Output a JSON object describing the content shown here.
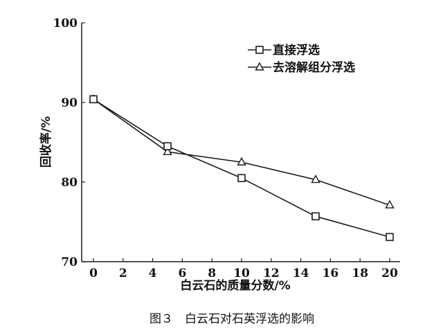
{
  "chart_data": {
    "type": "line",
    "title": "",
    "caption": "图３　白云石对石英浮选的影响",
    "xlabel": "白云石的质量分数/%",
    "ylabel": "回收率/%",
    "xlim": [
      0,
      20
    ],
    "ylim": [
      70,
      100
    ],
    "xticks": [
      0,
      2,
      4,
      6,
      8,
      10,
      12,
      14,
      16,
      18,
      20
    ],
    "yticks": [
      70,
      80,
      90,
      100
    ],
    "grid": false,
    "legend_position": "top-right",
    "series": [
      {
        "name": "直接浮选",
        "marker": "square",
        "x": [
          0,
          5,
          10,
          15,
          20
        ],
        "y": [
          90.4,
          84.5,
          80.5,
          75.7,
          73.1
        ]
      },
      {
        "name": "去溶解组分浮选",
        "marker": "triangle",
        "x": [
          0,
          5,
          10,
          15,
          20
        ],
        "y": [
          90.4,
          83.8,
          82.5,
          80.3,
          77.1
        ]
      }
    ],
    "colors": {
      "line": "#1a1a1a"
    }
  }
}
